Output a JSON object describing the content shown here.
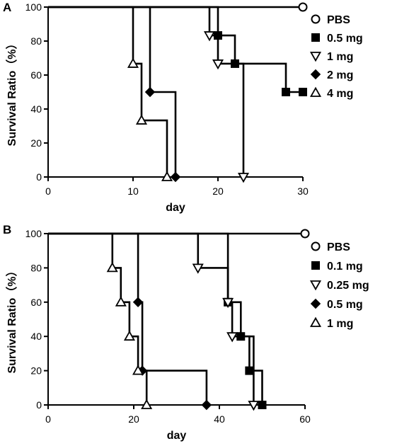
{
  "chart_data": [
    {
      "type": "line",
      "panel_label": "A",
      "xlabel": "day",
      "ylabel": "Survival Ratio（%）",
      "xlim": [
        0,
        30
      ],
      "ylim": [
        0,
        100
      ],
      "xticks": [
        0,
        10,
        20,
        30
      ],
      "yticks": [
        0,
        20,
        40,
        60,
        80,
        100
      ],
      "legend_position": "right",
      "series": [
        {
          "name": "PBS",
          "marker": "circle-open",
          "step": [
            [
              0,
              100
            ],
            [
              30,
              100
            ]
          ],
          "markers": [
            [
              30,
              100
            ]
          ]
        },
        {
          "name": "0.5 mg",
          "marker": "square",
          "step": [
            [
              0,
              100
            ],
            [
              20,
              100
            ],
            [
              20,
              83.3
            ],
            [
              22,
              83.3
            ],
            [
              22,
              66.7
            ],
            [
              28,
              66.7
            ],
            [
              28,
              50
            ],
            [
              30,
              50
            ]
          ],
          "markers": [
            [
              20,
              83.3
            ],
            [
              22,
              66.7
            ],
            [
              28,
              50
            ],
            [
              30,
              50
            ]
          ]
        },
        {
          "name": "1 mg",
          "marker": "triangle-down-open",
          "step": [
            [
              0,
              100
            ],
            [
              19,
              100
            ],
            [
              19,
              83.3
            ],
            [
              20,
              83.3
            ],
            [
              20,
              66.7
            ],
            [
              23,
              66.7
            ],
            [
              23,
              0
            ]
          ],
          "markers": [
            [
              19,
              83.3
            ],
            [
              20,
              66.7
            ],
            [
              23,
              0
            ]
          ]
        },
        {
          "name": "2 mg",
          "marker": "diamond",
          "step": [
            [
              0,
              100
            ],
            [
              12,
              100
            ],
            [
              12,
              50
            ],
            [
              15,
              50
            ],
            [
              15,
              0
            ]
          ],
          "markers": [
            [
              12,
              50
            ],
            [
              15,
              0
            ]
          ]
        },
        {
          "name": "4 mg",
          "marker": "triangle-up-open",
          "step": [
            [
              0,
              100
            ],
            [
              10,
              100
            ],
            [
              10,
              66.7
            ],
            [
              11,
              66.7
            ],
            [
              11,
              33.3
            ],
            [
              14,
              33.3
            ],
            [
              14,
              0
            ]
          ],
          "markers": [
            [
              10,
              66.7
            ],
            [
              11,
              33.3
            ],
            [
              14,
              0
            ]
          ]
        }
      ]
    },
    {
      "type": "line",
      "panel_label": "B",
      "xlabel": "day",
      "ylabel": "Survival Ratio（%）",
      "xlim": [
        0,
        60
      ],
      "ylim": [
        0,
        100
      ],
      "xticks": [
        0,
        20,
        40,
        60
      ],
      "yticks": [
        0,
        20,
        40,
        60,
        80,
        100
      ],
      "legend_position": "right",
      "series": [
        {
          "name": "PBS",
          "marker": "circle-open",
          "step": [
            [
              0,
              100
            ],
            [
              60,
              100
            ]
          ],
          "markers": [
            [
              60,
              100
            ]
          ]
        },
        {
          "name": "0.1 mg",
          "marker": "square",
          "step": [
            [
              0,
              100
            ],
            [
              42,
              100
            ],
            [
              42,
              60
            ],
            [
              45,
              60
            ],
            [
              45,
              40
            ],
            [
              47,
              40
            ],
            [
              47,
              20
            ],
            [
              50,
              20
            ],
            [
              50,
              0
            ]
          ],
          "markers": [
            [
              42,
              60
            ],
            [
              45,
              40
            ],
            [
              47,
              20
            ],
            [
              50,
              0
            ]
          ]
        },
        {
          "name": "0.25 mg",
          "marker": "triangle-down-open",
          "step": [
            [
              0,
              100
            ],
            [
              35,
              100
            ],
            [
              35,
              80
            ],
            [
              42,
              80
            ],
            [
              42,
              60
            ],
            [
              43,
              60
            ],
            [
              43,
              40
            ],
            [
              48,
              40
            ],
            [
              48,
              0
            ]
          ],
          "markers": [
            [
              35,
              80
            ],
            [
              42,
              60
            ],
            [
              43,
              40
            ],
            [
              48,
              0
            ]
          ]
        },
        {
          "name": "0.5 mg",
          "marker": "diamond",
          "step": [
            [
              0,
              100
            ],
            [
              21,
              100
            ],
            [
              21,
              60
            ],
            [
              22,
              60
            ],
            [
              22,
              20
            ],
            [
              37,
              20
            ],
            [
              37,
              0
            ]
          ],
          "markers": [
            [
              21,
              60
            ],
            [
              22,
              20
            ],
            [
              37,
              0
            ]
          ]
        },
        {
          "name": "1 mg",
          "marker": "triangle-up-open",
          "step": [
            [
              0,
              100
            ],
            [
              15,
              100
            ],
            [
              15,
              80
            ],
            [
              17,
              80
            ],
            [
              17,
              60
            ],
            [
              19,
              60
            ],
            [
              19,
              40
            ],
            [
              21,
              40
            ],
            [
              21,
              20
            ],
            [
              23,
              20
            ],
            [
              23,
              0
            ]
          ],
          "markers": [
            [
              15,
              80
            ],
            [
              17,
              60
            ],
            [
              19,
              40
            ],
            [
              21,
              20
            ],
            [
              23,
              0
            ]
          ]
        }
      ]
    }
  ]
}
